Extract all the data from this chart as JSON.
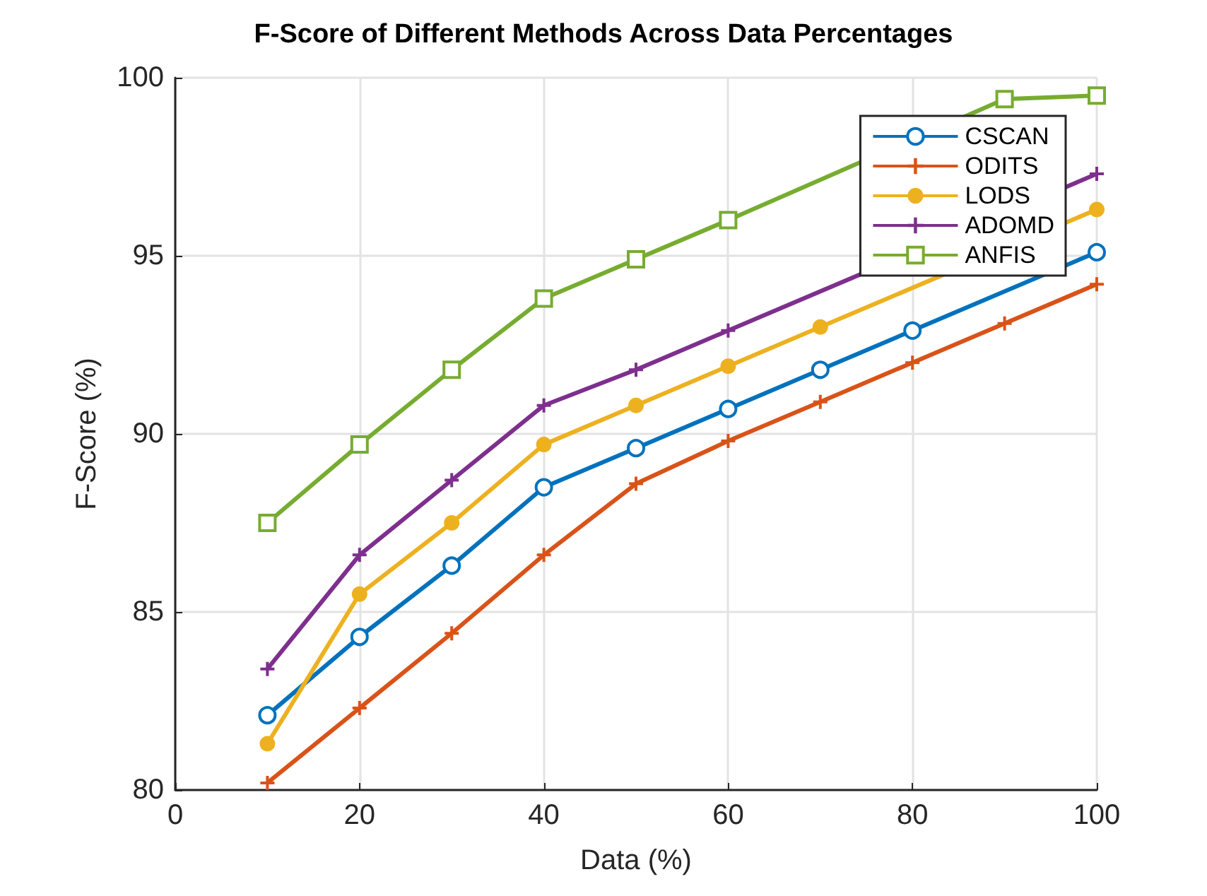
{
  "chart_data": {
    "type": "line",
    "title": "F-Score of Different Methods Across Data Percentages",
    "xlabel": "Data (%)",
    "ylabel": "F-Score (%)",
    "x": [
      10,
      20,
      30,
      40,
      50,
      60,
      70,
      80,
      90,
      100
    ],
    "series": [
      {
        "name": "CSCAN",
        "color": "#0072bd",
        "marker": "circle",
        "values": [
          82.1,
          84.3,
          86.3,
          88.5,
          89.6,
          90.7,
          91.8,
          92.9,
          null,
          95.1
        ]
      },
      {
        "name": "ODITS",
        "color": "#d95319",
        "marker": "cross",
        "values": [
          80.2,
          82.3,
          84.4,
          86.6,
          88.6,
          89.8,
          90.9,
          92.0,
          93.1,
          94.2
        ]
      },
      {
        "name": "LODS",
        "color": "#edb120",
        "marker": "circle",
        "values": [
          81.3,
          85.5,
          87.5,
          89.7,
          90.8,
          91.9,
          93.0,
          null,
          null,
          96.3
        ]
      },
      {
        "name": "ADOMD",
        "color": "#7e2f8e",
        "marker": "cross",
        "values": [
          83.4,
          86.6,
          88.7,
          90.8,
          91.8,
          92.9,
          null,
          null,
          null,
          97.3
        ]
      },
      {
        "name": "ANFIS",
        "color": "#77ac30",
        "marker": "square",
        "values": [
          87.5,
          89.7,
          91.8,
          93.8,
          94.9,
          96.0,
          null,
          null,
          99.4,
          99.5
        ]
      }
    ],
    "xlim": [
      0,
      100
    ],
    "xticks": [
      0,
      20,
      40,
      60,
      80,
      100
    ],
    "ylim": [
      80,
      100
    ],
    "yticks": [
      80,
      85,
      90,
      95,
      100
    ],
    "grid": true,
    "legend": "top right",
    "line_style": "solid"
  }
}
